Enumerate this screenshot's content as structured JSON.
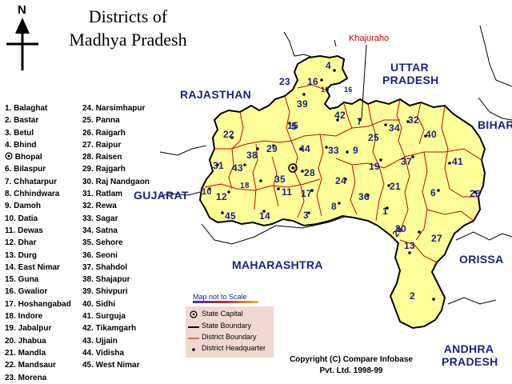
{
  "title_lines": [
    "Districts of",
    "Madhya Pradesh"
  ],
  "north_label": "N",
  "districts_col1": [
    "1. Balaghat",
    "2. Bastar",
    "3. Betul",
    "4. Bhind",
    "Bhopal",
    "6. Bilaspur",
    "7. Chhatarpur",
    "8. Chhindwara",
    "9. Damoh",
    "10. Datia",
    "11. Dewas",
    "12. Dhar",
    "13. Durg",
    "14. East Nimar",
    "15. Guna",
    "16. Gwalior",
    "17. Hoshangabad",
    "18. Indore",
    "19. Jabalpur",
    "20. Jhabua",
    "21. Mandla",
    "22. Mandsaur",
    "23. Morena"
  ],
  "districts_col2": [
    "24. Narsimhapur",
    "25. Panna",
    "26. Raigarh",
    "27. Raipur",
    "28. Raisen",
    "29. Rajgarh",
    "30. Raj Nandgaon",
    "31. Ratlam",
    "32. Rewa",
    "33. Sagar",
    "34. Satna",
    "35. Sehore",
    "36. Seoni",
    "37. Shahdol",
    "38. Shajapur",
    "39. Shivpuri",
    "40. Sidhi",
    "41. Surguja",
    "42. Tikamgarh",
    "43. Ujjain",
    "44. Vidisha",
    "45. West Nimar"
  ],
  "neighbors": {
    "rajasthan": "RAJASTHAN",
    "uttar_pradesh": [
      "UTTAR",
      "PRADESH"
    ],
    "bihar": "BIHAR",
    "gujarat": "GUJARAT",
    "maharashtra": "MAHARASHTRA",
    "orissa": "ORISSA",
    "andhra_pradesh": [
      "ANDHRA",
      "PRADESH"
    ]
  },
  "khajuraho": "Khajuraho",
  "map_numbers": [
    "1",
    "2",
    "3",
    "4",
    "5",
    "6",
    "7",
    "8",
    "9",
    "10",
    "11",
    "12",
    "13",
    "14",
    "15",
    "16",
    "16",
    "17",
    "18",
    "19",
    "20",
    "21",
    "22",
    "23",
    "24",
    "25",
    "26",
    "27",
    "28",
    "29",
    "30",
    "31",
    "32",
    "33",
    "34",
    "35",
    "36",
    "37",
    "38",
    "39",
    "40",
    "41",
    "42",
    "43",
    "44",
    "45",
    "10"
  ],
  "scale_note": "Map not to Scale",
  "key": {
    "state_capital": "State Capital",
    "state_boundary": "State Boundary",
    "district_boundary": "District Boundary",
    "district_hq": "District Headquarter"
  },
  "copyright": [
    "Copyright (C) Compare Infobase",
    "Pvt. Ltd. 1998-99"
  ],
  "colors": {
    "state_fill": "#ffff99",
    "district_boundary": "#cc0000",
    "state_boundary": "#000000",
    "map_numbers": "#1a237e",
    "key_box": "#f0d8d0"
  }
}
